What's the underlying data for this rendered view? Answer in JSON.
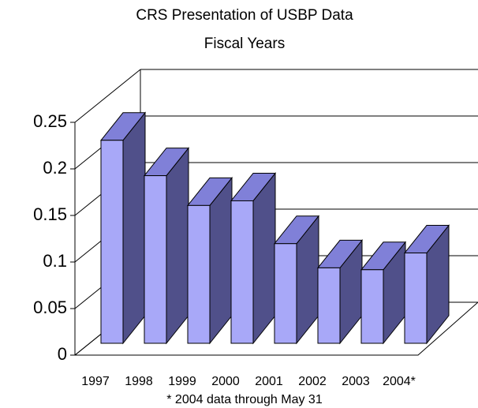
{
  "chart_data": {
    "type": "bar3d",
    "title": "CRS Presentation of USBP Data",
    "subtitle": "Fiscal Years",
    "footnote": "* 2004 data through May 31",
    "categories": [
      "1997",
      "1998",
      "1999",
      "2000",
      "2001",
      "2002",
      "2003",
      "2004*"
    ],
    "values": [
      0.218,
      0.18,
      0.148,
      0.153,
      0.107,
      0.081,
      0.079,
      0.097
    ],
    "color": "#a8a8f8",
    "side_color": "#50508a",
    "top_color": "#8080d8",
    "ylim": [
      0,
      0.25
    ],
    "yticks": [
      0,
      0.05,
      0.1,
      0.15,
      0.2,
      0.25
    ],
    "grid": true
  }
}
